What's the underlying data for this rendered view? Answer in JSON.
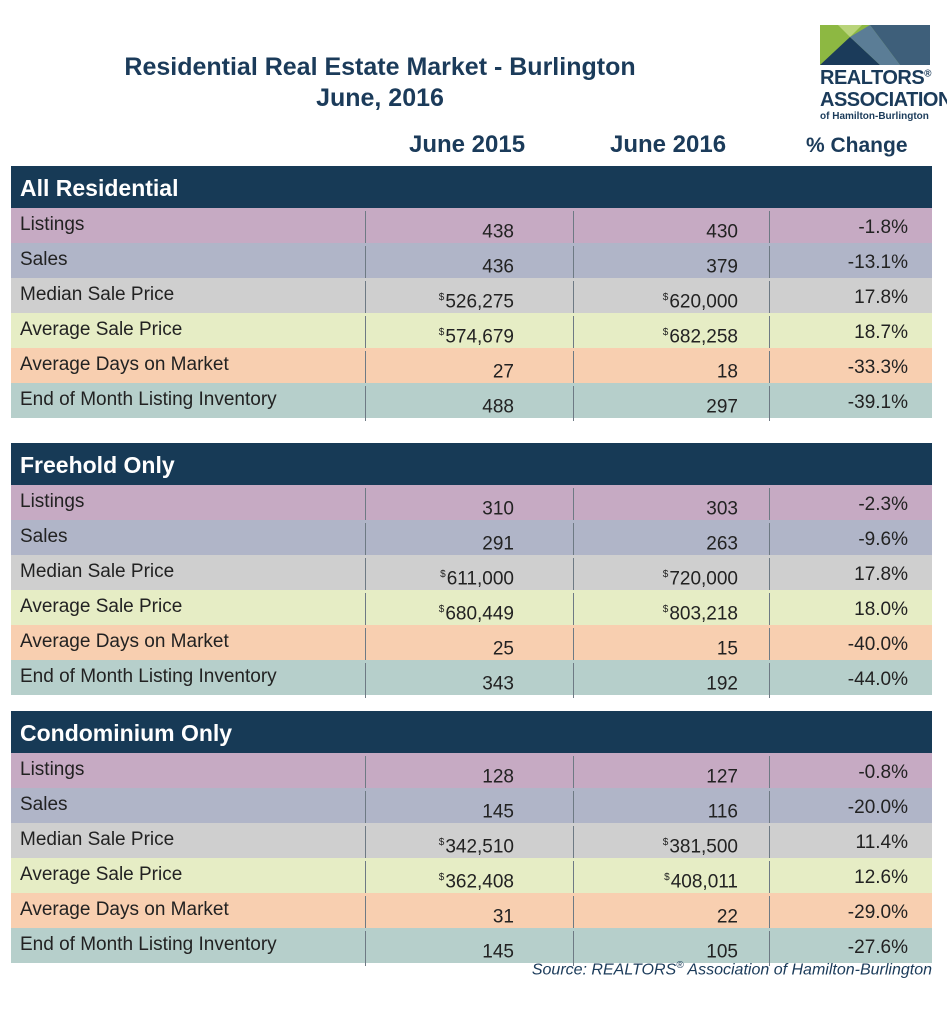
{
  "title": {
    "line1": "Residential Real Estate Market - Burlington",
    "line2": "June, 2016"
  },
  "logo": {
    "line1": "REALTORS",
    "reg": "®",
    "line2": "ASSOCIATION",
    "line3": "of Hamilton-Burlington",
    "colors": {
      "green": "#8db842",
      "navy": "#1b3b5a",
      "slate": "#3e5f7a"
    }
  },
  "columns": {
    "c1": "June 2015",
    "c2": "June 2016",
    "c3": "% Change"
  },
  "row_colors": {
    "listings": "#c6aac3",
    "sales": "#b0b5c8",
    "median": "#cfcfcf",
    "average": "#e6edc5",
    "dom": "#f8cfb0",
    "inventory": "#b6cfcb"
  },
  "sections": [
    {
      "title": "All Residential",
      "rows": [
        {
          "label": "Listings",
          "dollar": "",
          "v2015": "438",
          "v2016": "430",
          "change": "-1.8%"
        },
        {
          "label": "Sales",
          "dollar": "",
          "v2015": "436",
          "v2016": "379",
          "change": "-13.1%"
        },
        {
          "label": "Median Sale Price",
          "dollar": "$",
          "v2015": "526,275",
          "v2016": "620,000",
          "change": "17.8%"
        },
        {
          "label": "Average Sale Price",
          "dollar": "$",
          "v2015": "574,679",
          "v2016": "682,258",
          "change": "18.7%"
        },
        {
          "label": "Average Days on Market",
          "dollar": "",
          "v2015": "27",
          "v2016": "18",
          "change": "-33.3%"
        },
        {
          "label": "End of Month Listing Inventory",
          "dollar": "",
          "v2015": "488",
          "v2016": "297",
          "change": "-39.1%"
        }
      ]
    },
    {
      "title": "Freehold Only",
      "rows": [
        {
          "label": "Listings",
          "dollar": "",
          "v2015": "310",
          "v2016": "303",
          "change": "-2.3%"
        },
        {
          "label": "Sales",
          "dollar": "",
          "v2015": "291",
          "v2016": "263",
          "change": "-9.6%"
        },
        {
          "label": "Median Sale Price",
          "dollar": "$",
          "v2015": "611,000",
          "v2016": "720,000",
          "change": "17.8%"
        },
        {
          "label": "Average Sale Price",
          "dollar": "$",
          "v2015": "680,449",
          "v2016": "803,218",
          "change": "18.0%"
        },
        {
          "label": "Average Days on Market",
          "dollar": "",
          "v2015": "25",
          "v2016": "15",
          "change": "-40.0%"
        },
        {
          "label": "End of Month Listing Inventory",
          "dollar": "",
          "v2015": "343",
          "v2016": "192",
          "change": "-44.0%"
        }
      ]
    },
    {
      "title": "Condominium Only",
      "rows": [
        {
          "label": "Listings",
          "dollar": "",
          "v2015": "128",
          "v2016": "127",
          "change": "-0.8%"
        },
        {
          "label": "Sales",
          "dollar": "",
          "v2015": "145",
          "v2016": "116",
          "change": "-20.0%"
        },
        {
          "label": "Median Sale Price",
          "dollar": "$",
          "v2015": "342,510",
          "v2016": "381,500",
          "change": "11.4%"
        },
        {
          "label": "Average Sale Price",
          "dollar": "$",
          "v2015": "362,408",
          "v2016": "408,011",
          "change": "12.6%"
        },
        {
          "label": "Average Days on Market",
          "dollar": "",
          "v2015": "31",
          "v2016": "22",
          "change": "-29.0%"
        },
        {
          "label": "End of Month Listing Inventory",
          "dollar": "",
          "v2015": "145",
          "v2016": "105",
          "change": "-27.6%"
        }
      ]
    }
  ],
  "source": {
    "prefix": "Source:  REALTORS",
    "reg": "®",
    "suffix": " Association of Hamilton-Burlington"
  }
}
